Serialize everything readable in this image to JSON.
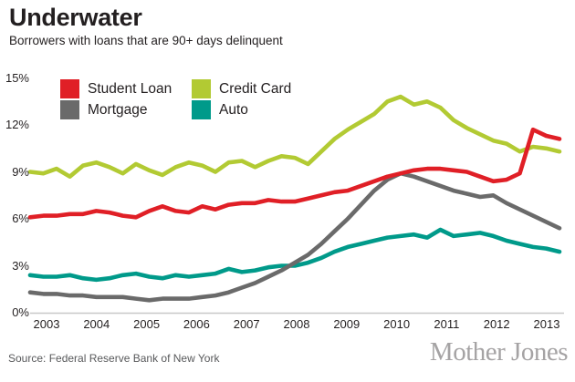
{
  "header": {
    "title": "Underwater",
    "subtitle": "Borrowers with loans that are 90+ days delinquent"
  },
  "footer": {
    "source": "Source: Federal Reserve Bank of New York",
    "brand": "Mother Jones"
  },
  "chart_data": {
    "type": "line",
    "title": "Underwater",
    "subtitle": "Borrowers with loans that are 90+ days delinquent",
    "x_frequency": "quarterly",
    "x_range": [
      "2003 Q1",
      "2013 Q1"
    ],
    "x_tick_labels": [
      "2003",
      "2004",
      "2005",
      "2006",
      "2007",
      "2008",
      "2009",
      "2010",
      "2011",
      "2012",
      "2013"
    ],
    "y_tick_labels": [
      "0%",
      "3%",
      "6%",
      "9%",
      "12%",
      "15%"
    ],
    "y_tick_values": [
      0,
      3,
      6,
      9,
      12,
      15
    ],
    "ylim": [
      0,
      15
    ],
    "grid": false,
    "legend_position": "top-left-inside",
    "axis_color": "#c8c8c8",
    "draw_order": [
      1,
      3,
      2,
      0
    ],
    "series": [
      {
        "id": "student-loan",
        "name": "Student Loan",
        "color": "#e01f26",
        "values": [
          6.1,
          6.2,
          6.2,
          6.3,
          6.3,
          6.5,
          6.4,
          6.2,
          6.1,
          6.5,
          6.8,
          6.5,
          6.4,
          6.8,
          6.6,
          6.9,
          7.0,
          7.0,
          7.2,
          7.1,
          7.1,
          7.3,
          7.5,
          7.7,
          7.8,
          8.1,
          8.4,
          8.7,
          8.9,
          9.1,
          9.2,
          9.2,
          9.1,
          9.0,
          8.7,
          8.4,
          8.5,
          8.9,
          11.7,
          11.3,
          11.1
        ]
      },
      {
        "id": "credit-card",
        "name": "Credit Card",
        "color": "#b2ca33",
        "values": [
          9.0,
          8.9,
          9.2,
          8.7,
          9.4,
          9.6,
          9.3,
          8.9,
          9.5,
          9.1,
          8.8,
          9.3,
          9.6,
          9.4,
          9.0,
          9.6,
          9.7,
          9.3,
          9.7,
          10.0,
          9.9,
          9.5,
          10.3,
          11.1,
          11.7,
          12.2,
          12.7,
          13.5,
          13.8,
          13.3,
          13.5,
          13.1,
          12.3,
          11.8,
          11.4,
          11.0,
          10.8,
          10.3,
          10.6,
          10.5,
          10.3
        ]
      },
      {
        "id": "mortgage",
        "name": "Mortgage",
        "color": "#6a6a6a",
        "values": [
          1.3,
          1.2,
          1.2,
          1.1,
          1.1,
          1.0,
          1.0,
          1.0,
          0.9,
          0.8,
          0.9,
          0.9,
          0.9,
          1.0,
          1.1,
          1.3,
          1.6,
          1.9,
          2.3,
          2.7,
          3.2,
          3.7,
          4.4,
          5.2,
          6.0,
          6.9,
          7.8,
          8.5,
          8.9,
          8.7,
          8.4,
          8.1,
          7.8,
          7.6,
          7.4,
          7.5,
          7.0,
          6.6,
          6.2,
          5.8,
          5.4
        ]
      },
      {
        "id": "auto",
        "name": "Auto",
        "color": "#009a8a",
        "values": [
          2.4,
          2.3,
          2.3,
          2.4,
          2.2,
          2.1,
          2.2,
          2.4,
          2.5,
          2.3,
          2.2,
          2.4,
          2.3,
          2.4,
          2.5,
          2.8,
          2.6,
          2.7,
          2.9,
          3.0,
          3.0,
          3.2,
          3.5,
          3.9,
          4.2,
          4.4,
          4.6,
          4.8,
          4.9,
          5.0,
          4.8,
          5.3,
          4.9,
          5.0,
          5.1,
          4.9,
          4.6,
          4.4,
          4.2,
          4.1,
          3.9
        ]
      }
    ]
  }
}
